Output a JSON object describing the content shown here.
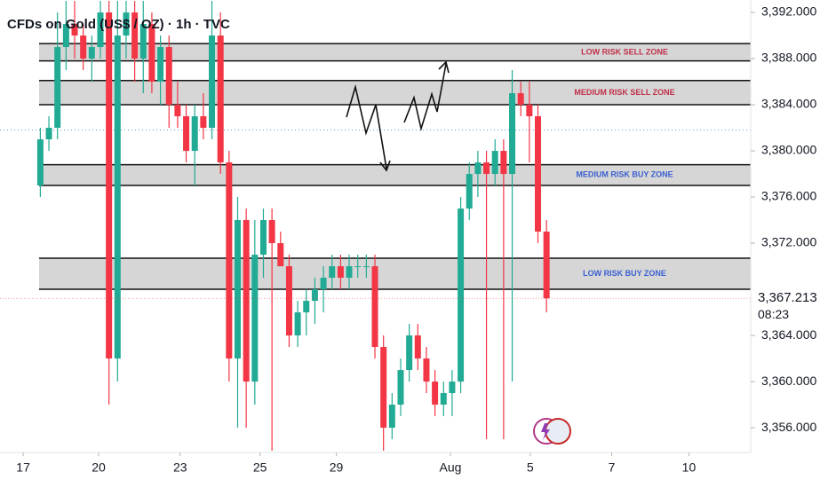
{
  "chart_data": {
    "type": "candlestick",
    "title": "CFDs on Gold (US$ / OZ) · 1h · TVC",
    "x": [
      0,
      1,
      2,
      3,
      4,
      5,
      6,
      7,
      8,
      9,
      10,
      11,
      12,
      13,
      14,
      15,
      16,
      17,
      18,
      19,
      20,
      21,
      22,
      23,
      24,
      25,
      26,
      27,
      28,
      29,
      30,
      31,
      32,
      33,
      34,
      35,
      36,
      37,
      38,
      39,
      40,
      41,
      42,
      43,
      44,
      45,
      46,
      47,
      48,
      49,
      50,
      51,
      52,
      53,
      54,
      55,
      56,
      57,
      58,
      59
    ],
    "open": [
      3377,
      3381,
      3382,
      3389,
      3391,
      3390,
      3388,
      3389,
      3392,
      3362,
      3390,
      3392,
      3388,
      3391,
      3386,
      3389,
      3384,
      3383,
      3380,
      3383,
      3382,
      3390,
      3379,
      3362,
      3374,
      3360,
      3371,
      3374,
      3372,
      3370,
      3364,
      3366,
      3367,
      3368,
      3369,
      3370,
      3369,
      3370,
      3370,
      3370,
      3363,
      3356,
      3358,
      3361,
      3364,
      3362,
      3360,
      3358,
      3359,
      3360,
      3375,
      3378,
      3379,
      3378,
      3380,
      3378,
      3385,
      3384,
      3383,
      3373
    ],
    "high": [
      3382,
      3383,
      3392,
      3393,
      3393,
      3391,
      3390,
      3393,
      3393,
      3393,
      3393,
      3393,
      3393,
      3392,
      3390,
      3390,
      3386,
      3384,
      3384,
      3385,
      3393,
      3392,
      3380,
      3376,
      3375,
      3374,
      3375,
      3375,
      3373,
      3371,
      3367,
      3368,
      3369,
      3370,
      3371,
      3371,
      3371,
      3371,
      3371,
      3371,
      3364,
      3359,
      3362,
      3365,
      3365,
      3363,
      3361,
      3360,
      3361,
      3376,
      3379,
      3380,
      3380,
      3381,
      3381,
      3387,
      3386,
      3386,
      3384,
      3374
    ],
    "low": [
      3376,
      3380,
      3381,
      3387,
      3388,
      3387,
      3386,
      3388,
      3358,
      3360,
      3388,
      3386,
      3385,
      3385,
      3384,
      3382,
      3382,
      3379,
      3377,
      3381,
      3381,
      3378,
      3360,
      3356,
      3356,
      3358,
      3369,
      3354,
      3370,
      3363,
      3363,
      3364,
      3365,
      3366,
      3368,
      3368,
      3368,
      3369,
      3369,
      3362,
      3354,
      3355,
      3357,
      3360,
      3361,
      3359,
      3357,
      3357,
      3357,
      3359,
      3374,
      3376,
      3355,
      3377,
      3355,
      3360,
      3383,
      3379,
      3372,
      3366
    ],
    "close": [
      3381,
      3382,
      3389,
      3391,
      3390,
      3388,
      3389,
      3392,
      3362,
      3390,
      3392,
      3388,
      3391,
      3386,
      3389,
      3384,
      3383,
      3380,
      3383,
      3382,
      3390,
      3379,
      3362,
      3374,
      3360,
      3371,
      3374,
      3372,
      3370,
      3364,
      3366,
      3367,
      3368,
      3369,
      3370,
      3369,
      3370,
      3370,
      3370,
      3363,
      3356,
      3358,
      3361,
      3364,
      3362,
      3360,
      3358,
      3359,
      3360,
      3375,
      3378,
      3379,
      3378,
      3380,
      3378,
      3385,
      3384,
      3383,
      3373,
      3367.213
    ],
    "up_color": "#22ab94",
    "down_color": "#f23645",
    "xlim": [
      -4.7,
      82.8
    ],
    "xticks": [
      {
        "value": -2.0,
        "label": "17"
      },
      {
        "value": 6.8,
        "label": "20"
      },
      {
        "value": 16.3,
        "label": "23"
      },
      {
        "value": 25.6,
        "label": "25"
      },
      {
        "value": 34.5,
        "label": "29"
      },
      {
        "value": 47.8,
        "label": "Aug"
      },
      {
        "value": 57.1,
        "label": "5"
      },
      {
        "value": 66.6,
        "label": "7"
      },
      {
        "value": 75.6,
        "label": "10"
      }
    ],
    "ylim": [
      3353.85,
      3393.08
    ],
    "yticks": [
      {
        "value": 3356,
        "label": "3,356.000"
      },
      {
        "value": 3360,
        "label": "3,360.000"
      },
      {
        "value": 3364,
        "label": "3,364.000"
      },
      {
        "value": 3372,
        "label": "3,372.000"
      },
      {
        "value": 3376,
        "label": "3,376.000"
      },
      {
        "value": 3380,
        "label": "3,380.000"
      },
      {
        "value": 3384,
        "label": "3,384.000"
      },
      {
        "value": 3388,
        "label": "3,388.000"
      },
      {
        "value": 3392,
        "label": "3,392.000"
      }
    ],
    "zones": [
      {
        "label": "LOW RISK SELL ZONE",
        "low": 3387.8,
        "high": 3389.3,
        "color": "#c0304a"
      },
      {
        "label": "MEDIUM RISK SELL ZONE",
        "low": 3384,
        "high": 3386.1,
        "color": "#c0304a"
      },
      {
        "label": "MEDIUM RISK BUY ZONE",
        "low": 3377,
        "high": 3378.8,
        "color": "#3a5fd0"
      },
      {
        "label": "LOW RISK BUY ZONE",
        "low": 3368,
        "high": 3370.7,
        "color": "#3a5fd0"
      }
    ],
    "reference_line": 3381.8,
    "last_price": {
      "value": 3367.213,
      "label": "3,367.213"
    },
    "countdown": "08:23"
  }
}
